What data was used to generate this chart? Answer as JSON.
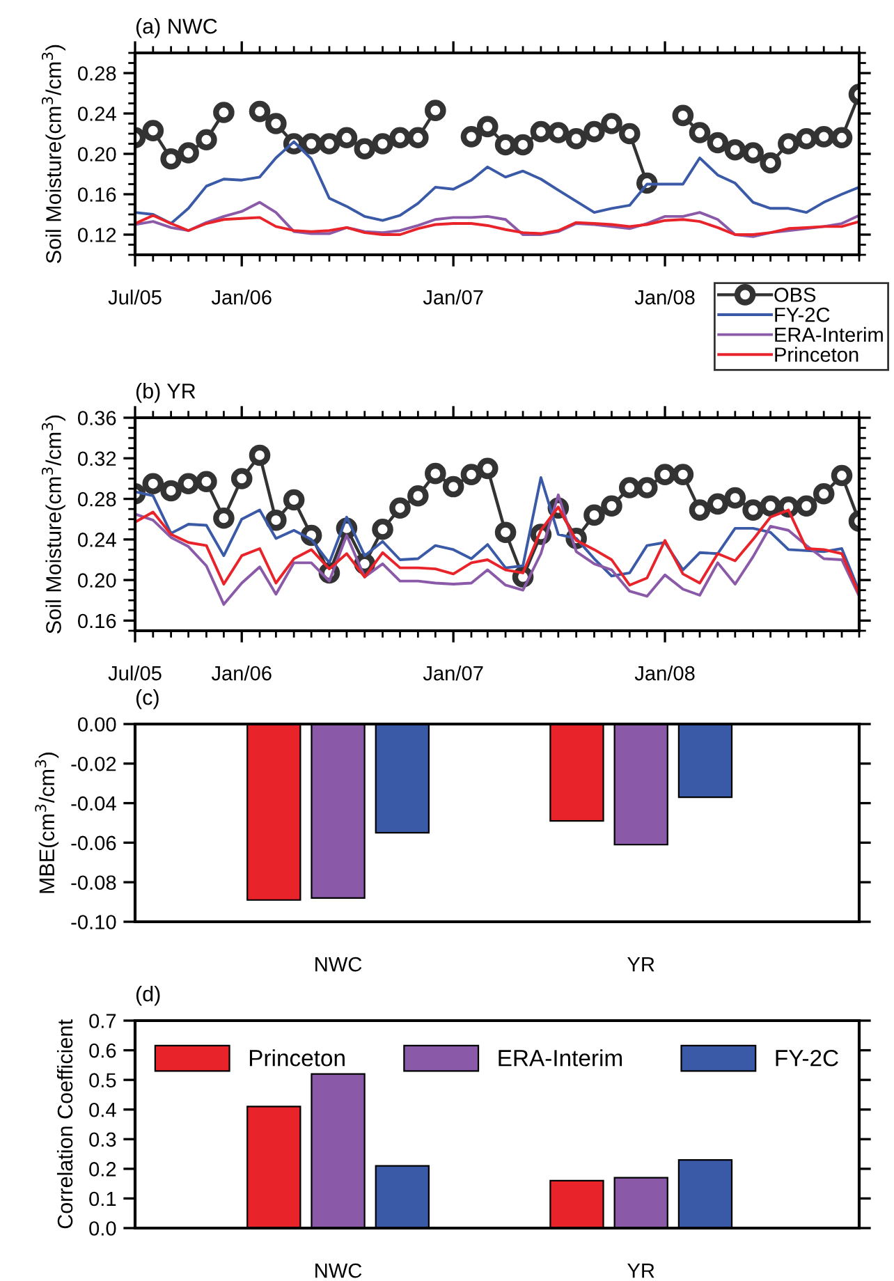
{
  "chart_data": [
    {
      "type": "line",
      "title": "(a) NWC",
      "ylabel": "Soil Moisture(cm$^{3}$/cm$^{3}$)",
      "x": [
        "2005-07",
        "2005-08",
        "2005-09",
        "2005-10",
        "2005-11",
        "2005-12",
        "2006-01",
        "2006-02",
        "2006-03",
        "2006-04",
        "2006-05",
        "2006-06",
        "2006-07",
        "2006-08",
        "2006-09",
        "2006-10",
        "2006-11",
        "2006-12",
        "2007-01",
        "2007-02",
        "2007-03",
        "2007-04",
        "2007-05",
        "2007-06",
        "2007-07",
        "2007-08",
        "2007-09",
        "2007-10",
        "2007-11",
        "2007-12",
        "2008-01",
        "2008-02",
        "2008-03",
        "2008-04",
        "2008-05",
        "2008-06",
        "2008-07",
        "2008-08",
        "2008-09",
        "2008-10",
        "2008-11",
        "2008-12"
      ],
      "xlim": [
        "2005-07",
        "2008-12"
      ],
      "xticks": [
        {
          "value": "2005-07",
          "label": "Jul/05"
        },
        {
          "value": "2006-01",
          "label": "Jan/06"
        },
        {
          "value": "2007-01",
          "label": "Jan/07"
        },
        {
          "value": "2008-01",
          "label": "Jan/08"
        }
      ],
      "ylim": [
        0.1,
        0.3
      ],
      "yticks": [
        {
          "value": 0.12,
          "label": "0.12"
        },
        {
          "value": 0.16,
          "label": "0.16"
        },
        {
          "value": 0.2,
          "label": "0.20"
        },
        {
          "value": 0.24,
          "label": "0.24"
        },
        {
          "value": 0.28,
          "label": "0.28"
        }
      ],
      "legend": "bottom right",
      "grid": false,
      "line_style": "solid",
      "series": [
        {
          "name": "OBS",
          "color": "#333333",
          "marker": "circle",
          "values": [
            0.216,
            0.223,
            0.195,
            0.201,
            0.214,
            0.241,
            null,
            0.242,
            0.23,
            0.21,
            0.21,
            0.21,
            0.216,
            0.205,
            0.21,
            0.216,
            0.216,
            0.243,
            null,
            0.217,
            0.227,
            0.209,
            0.209,
            0.222,
            0.221,
            0.215,
            0.222,
            0.23,
            0.22,
            0.171,
            null,
            0.238,
            0.221,
            0.211,
            0.204,
            0.201,
            0.191,
            0.21,
            0.215,
            0.217,
            0.216,
            0.259
          ]
        },
        {
          "name": "FY-2C",
          "color": "#3a5aa8",
          "values": [
            0.142,
            0.14,
            0.131,
            0.146,
            0.168,
            0.175,
            0.174,
            0.177,
            0.196,
            0.212,
            0.195,
            0.156,
            0.148,
            0.138,
            0.134,
            0.139,
            0.151,
            0.167,
            0.165,
            0.174,
            0.187,
            0.177,
            0.183,
            0.175,
            0.164,
            0.153,
            0.142,
            0.146,
            0.149,
            0.17,
            0.17,
            0.17,
            0.196,
            0.179,
            0.171,
            0.152,
            0.146,
            0.146,
            0.142,
            0.152,
            0.16,
            0.167
          ]
        },
        {
          "name": "ERA-Interim",
          "color": "#8a5aa8",
          "values": [
            0.13,
            0.133,
            0.127,
            0.124,
            0.132,
            0.138,
            0.143,
            0.152,
            0.142,
            0.123,
            0.121,
            0.121,
            0.127,
            0.123,
            0.122,
            0.124,
            0.129,
            0.135,
            0.137,
            0.137,
            0.138,
            0.135,
            0.12,
            0.12,
            0.123,
            0.131,
            0.13,
            0.128,
            0.126,
            0.131,
            0.138,
            0.138,
            0.142,
            0.135,
            0.12,
            0.118,
            0.122,
            0.124,
            0.126,
            0.128,
            0.131,
            0.139
          ]
        },
        {
          "name": "Princeton",
          "color": "#e8232a",
          "values": [
            0.131,
            0.139,
            0.131,
            0.124,
            0.131,
            0.135,
            0.136,
            0.137,
            0.128,
            0.124,
            0.123,
            0.124,
            0.127,
            0.122,
            0.12,
            0.12,
            0.126,
            0.13,
            0.131,
            0.131,
            0.129,
            0.125,
            0.122,
            0.121,
            0.124,
            0.132,
            0.131,
            0.13,
            0.128,
            0.13,
            0.134,
            0.135,
            0.133,
            0.127,
            0.12,
            0.12,
            0.122,
            0.126,
            0.127,
            0.128,
            0.128,
            0.133
          ]
        }
      ]
    },
    {
      "type": "line",
      "title": "(b) YR",
      "ylabel": "Soil Moisture(cm$^{3}$/cm$^{3}$)",
      "x": [
        "2005-07",
        "2005-08",
        "2005-09",
        "2005-10",
        "2005-11",
        "2005-12",
        "2006-01",
        "2006-02",
        "2006-03",
        "2006-04",
        "2006-05",
        "2006-06",
        "2006-07",
        "2006-08",
        "2006-09",
        "2006-10",
        "2006-11",
        "2006-12",
        "2007-01",
        "2007-02",
        "2007-03",
        "2007-04",
        "2007-05",
        "2007-06",
        "2007-07",
        "2007-08",
        "2007-09",
        "2007-10",
        "2007-11",
        "2007-12",
        "2008-01",
        "2008-02",
        "2008-03",
        "2008-04",
        "2008-05",
        "2008-06",
        "2008-07",
        "2008-08",
        "2008-09",
        "2008-10",
        "2008-11",
        "2008-12"
      ],
      "xlim": [
        "2005-07",
        "2008-12"
      ],
      "xticks": [
        {
          "value": "2005-07",
          "label": "Jul/05"
        },
        {
          "value": "2006-01",
          "label": "Jan/06"
        },
        {
          "value": "2007-01",
          "label": "Jan/07"
        },
        {
          "value": "2008-01",
          "label": "Jan/08"
        }
      ],
      "ylim": [
        0.15,
        0.36
      ],
      "yticks": [
        {
          "value": 0.16,
          "label": "0.16"
        },
        {
          "value": 0.2,
          "label": "0.20"
        },
        {
          "value": 0.24,
          "label": "0.24"
        },
        {
          "value": 0.28,
          "label": "0.28"
        },
        {
          "value": 0.32,
          "label": "0.32"
        },
        {
          "value": 0.36,
          "label": "0.36"
        }
      ],
      "grid": false,
      "line_style": "solid",
      "series": [
        {
          "color": "#333333",
          "marker": "circle",
          "values": [
            0.285,
            0.295,
            0.288,
            0.295,
            0.297,
            0.261,
            0.3,
            0.323,
            0.259,
            0.279,
            0.244,
            0.207,
            0.251,
            0.216,
            0.25,
            0.271,
            0.283,
            0.305,
            0.292,
            0.304,
            0.31,
            0.247,
            0.203,
            0.245,
            0.271,
            0.241,
            0.264,
            0.273,
            0.291,
            0.291,
            0.304,
            0.304,
            0.269,
            0.275,
            0.281,
            0.269,
            0.273,
            0.272,
            0.273,
            0.285,
            0.303,
            0.258
          ]
        },
        {
          "color": "#3a5aa8",
          "values": [
            0.287,
            0.283,
            0.246,
            0.255,
            0.254,
            0.224,
            0.26,
            0.269,
            0.241,
            0.249,
            0.24,
            0.217,
            0.262,
            0.224,
            0.238,
            0.22,
            0.221,
            0.234,
            0.23,
            0.221,
            0.235,
            0.212,
            0.214,
            0.301,
            0.245,
            0.241,
            0.221,
            0.204,
            0.207,
            0.234,
            0.237,
            0.21,
            0.227,
            0.226,
            0.251,
            0.251,
            0.247,
            0.23,
            0.229,
            0.228,
            0.231,
            0.189
          ]
        },
        {
          "color": "#8a5aa8",
          "values": [
            0.265,
            0.259,
            0.242,
            0.233,
            0.214,
            0.176,
            0.197,
            0.213,
            0.186,
            0.217,
            0.217,
            0.199,
            0.244,
            0.203,
            0.216,
            0.199,
            0.199,
            0.197,
            0.196,
            0.197,
            0.21,
            0.195,
            0.19,
            0.226,
            0.284,
            0.228,
            0.216,
            0.21,
            0.189,
            0.184,
            0.205,
            0.191,
            0.185,
            0.217,
            0.196,
            0.223,
            0.253,
            0.249,
            0.234,
            0.221,
            0.22,
            0.184
          ]
        },
        {
          "color": "#e8232a",
          "values": [
            0.257,
            0.267,
            0.245,
            0.237,
            0.234,
            0.196,
            0.224,
            0.231,
            0.197,
            0.221,
            0.23,
            0.211,
            0.226,
            0.203,
            0.227,
            0.212,
            0.212,
            0.211,
            0.206,
            0.217,
            0.22,
            0.21,
            0.207,
            0.249,
            0.272,
            0.239,
            0.23,
            0.22,
            0.195,
            0.202,
            0.239,
            0.206,
            0.197,
            0.226,
            0.219,
            0.24,
            0.262,
            0.269,
            0.231,
            0.23,
            0.226,
            0.186
          ]
        }
      ]
    },
    {
      "type": "bar",
      "title": "(c)",
      "ylabel": "MBE(cm$^{3}$/cm$^{3}$)",
      "categories": [
        "NWC",
        "YR"
      ],
      "ylim": [
        -0.1,
        0.0
      ],
      "yticks": [
        {
          "value": -0.1,
          "label": "-0.10"
        },
        {
          "value": -0.08,
          "label": "-0.08"
        },
        {
          "value": -0.06,
          "label": "-0.06"
        },
        {
          "value": -0.04,
          "label": "-0.04"
        },
        {
          "value": -0.02,
          "label": "-0.02"
        },
        {
          "value": 0.0,
          "label": "0.00"
        }
      ],
      "grid": false,
      "series": [
        {
          "color": "#e8232a",
          "values": [
            -0.089,
            -0.049
          ]
        },
        {
          "color": "#8a5aa8",
          "values": [
            -0.088,
            -0.061
          ]
        },
        {
          "color": "#3a5aa8",
          "values": [
            -0.055,
            -0.037
          ]
        }
      ]
    },
    {
      "type": "bar",
      "title": "(d)",
      "ylabel": "Correlation Coefficient",
      "categories": [
        "NWC",
        "YR"
      ],
      "ylim": [
        0.0,
        0.7
      ],
      "yticks": [
        {
          "value": 0.0,
          "label": "0.0"
        },
        {
          "value": 0.1,
          "label": "0.1"
        },
        {
          "value": 0.2,
          "label": "0.2"
        },
        {
          "value": 0.3,
          "label": "0.3"
        },
        {
          "value": 0.4,
          "label": "0.4"
        },
        {
          "value": 0.5,
          "label": "0.5"
        },
        {
          "value": 0.6,
          "label": "0.6"
        },
        {
          "value": 0.7,
          "label": "0.7"
        }
      ],
      "grid": false,
      "legend": "top",
      "series": [
        {
          "name": "Princeton",
          "color": "#e8232a",
          "values": [
            0.41,
            0.16
          ]
        },
        {
          "name": "ERA-Interim",
          "color": "#8a5aa8",
          "values": [
            0.52,
            0.17
          ]
        },
        {
          "name": "FY-2C",
          "color": "#3a5aa8",
          "values": [
            0.21,
            0.23
          ]
        }
      ]
    }
  ]
}
